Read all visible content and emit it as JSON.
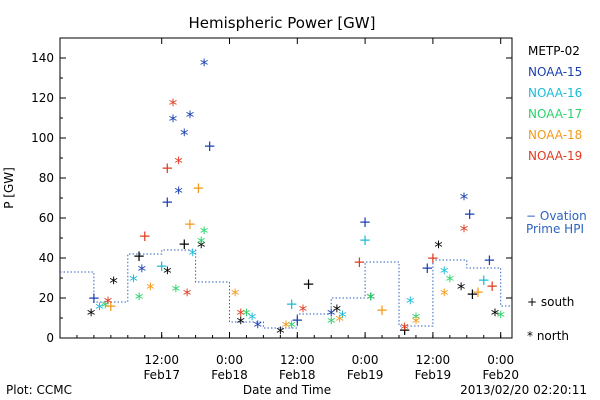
{
  "chart_data": {
    "type": "scatter",
    "title": "Hemispheric Power [GW]",
    "xlabel": "Date and Time",
    "ylabel": "P [GW]",
    "xlim": [
      "2013-02-16 18:00",
      "2013-02-20 02:00"
    ],
    "ylim": [
      0,
      150
    ],
    "grid": false,
    "legend_position": "right",
    "yticks": [
      0,
      20,
      40,
      60,
      80,
      100,
      120,
      140
    ],
    "xticks": [
      {
        "time": "2013-02-17 12:00",
        "label": "12:00",
        "sublabel": "Feb17"
      },
      {
        "time": "2013-02-18 00:00",
        "label": "0:00",
        "sublabel": "Feb18"
      },
      {
        "time": "2013-02-18 12:00",
        "label": "12:00",
        "sublabel": "Feb18"
      },
      {
        "time": "2013-02-19 00:00",
        "label": "0:00",
        "sublabel": "Feb19"
      },
      {
        "time": "2013-02-19 12:00",
        "label": "12:00",
        "sublabel": "Feb19"
      },
      {
        "time": "2013-02-20 00:00",
        "label": "0:00",
        "sublabel": "Feb20"
      }
    ],
    "series": [
      {
        "name": "METP-02",
        "color": "#000000",
        "points": [
          [
            "2013-02-16 23:30",
            12,
            "*"
          ],
          [
            "2013-02-17 03:30",
            28,
            "*"
          ],
          [
            "2013-02-17 08:00",
            41,
            "+"
          ],
          [
            "2013-02-17 13:00",
            33,
            "*"
          ],
          [
            "2013-02-17 16:00",
            47,
            "+"
          ],
          [
            "2013-02-17 19:00",
            46,
            "*"
          ],
          [
            "2013-02-18 02:00",
            8,
            "*"
          ],
          [
            "2013-02-18 09:00",
            3,
            "*"
          ],
          [
            "2013-02-18 14:00",
            27,
            "+"
          ],
          [
            "2013-02-18 19:00",
            14,
            "*"
          ],
          [
            "2013-02-19 01:00",
            20,
            "*"
          ],
          [
            "2013-02-19 07:00",
            4,
            "+"
          ],
          [
            "2013-02-19 13:00",
            46,
            "*"
          ],
          [
            "2013-02-19 17:00",
            25,
            "*"
          ],
          [
            "2013-02-19 19:00",
            22,
            "+"
          ],
          [
            "2013-02-19 23:00",
            12,
            "*"
          ]
        ]
      },
      {
        "name": "NOAA-15",
        "color": "#1a3fb0",
        "points": [
          [
            "2013-02-17 00:00",
            20,
            "+"
          ],
          [
            "2013-02-17 08:30",
            34,
            "*"
          ],
          [
            "2013-02-17 13:00",
            68,
            "+"
          ],
          [
            "2013-02-17 14:00",
            109,
            "*"
          ],
          [
            "2013-02-17 15:00",
            73,
            "*"
          ],
          [
            "2013-02-17 16:00",
            102,
            "*"
          ],
          [
            "2013-02-17 17:00",
            111,
            "*"
          ],
          [
            "2013-02-17 19:30",
            137,
            "*"
          ],
          [
            "2013-02-17 20:30",
            96,
            "+"
          ],
          [
            "2013-02-18 05:00",
            6,
            "*"
          ],
          [
            "2013-02-18 12:00",
            9,
            "+"
          ],
          [
            "2013-02-18 18:00",
            12,
            "*"
          ],
          [
            "2013-02-19 00:00",
            58,
            "+"
          ],
          [
            "2013-02-19 11:00",
            35,
            "+"
          ],
          [
            "2013-02-19 17:30",
            70,
            "*"
          ],
          [
            "2013-02-19 18:30",
            62,
            "+"
          ],
          [
            "2013-02-19 22:00",
            39,
            "+"
          ]
        ]
      },
      {
        "name": "NOAA-16",
        "color": "#1cbcd8",
        "points": [
          [
            "2013-02-17 01:00",
            15,
            "*"
          ],
          [
            "2013-02-17 07:00",
            29,
            "*"
          ],
          [
            "2013-02-17 12:00",
            36,
            "+"
          ],
          [
            "2013-02-17 17:30",
            42,
            "*"
          ],
          [
            "2013-02-18 04:00",
            10,
            "*"
          ],
          [
            "2013-02-18 11:00",
            17,
            "+"
          ],
          [
            "2013-02-18 20:00",
            11,
            "*"
          ],
          [
            "2013-02-19 00:00",
            49,
            "+"
          ],
          [
            "2013-02-19 08:00",
            18,
            "*"
          ],
          [
            "2013-02-19 14:00",
            33,
            "*"
          ],
          [
            "2013-02-19 21:00",
            29,
            "+"
          ]
        ]
      },
      {
        "name": "NOAA-17",
        "color": "#2ad36a",
        "points": [
          [
            "2013-02-17 02:00",
            16,
            "*"
          ],
          [
            "2013-02-17 08:00",
            20,
            "*"
          ],
          [
            "2013-02-17 14:30",
            24,
            "*"
          ],
          [
            "2013-02-17 19:30",
            53,
            "*"
          ],
          [
            "2013-02-17 19:00",
            48,
            "*"
          ],
          [
            "2013-02-18 03:00",
            12,
            "*"
          ],
          [
            "2013-02-18 11:00",
            6,
            "*"
          ],
          [
            "2013-02-18 18:00",
            8,
            "*"
          ],
          [
            "2013-02-19 01:00",
            20,
            "*"
          ],
          [
            "2013-02-19 09:00",
            10,
            "*"
          ],
          [
            "2013-02-19 15:00",
            29,
            "*"
          ],
          [
            "2013-02-20 00:00",
            11,
            "*"
          ]
        ]
      },
      {
        "name": "NOAA-18",
        "color": "#f39a1a",
        "points": [
          [
            "2013-02-17 03:00",
            16,
            "+"
          ],
          [
            "2013-02-17 10:00",
            25,
            "*"
          ],
          [
            "2013-02-17 17:00",
            57,
            "+"
          ],
          [
            "2013-02-17 18:30",
            75,
            "+"
          ],
          [
            "2013-02-18 01:00",
            22,
            "*"
          ],
          [
            "2013-02-18 10:00",
            6,
            "*"
          ],
          [
            "2013-02-18 19:30",
            9,
            "*"
          ],
          [
            "2013-02-19 03:00",
            14,
            "+"
          ],
          [
            "2013-02-19 09:00",
            8,
            "*"
          ],
          [
            "2013-02-19 14:00",
            22,
            "*"
          ],
          [
            "2013-02-19 20:00",
            23,
            "+"
          ]
        ]
      },
      {
        "name": "NOAA-19",
        "color": "#e03c1f",
        "points": [
          [
            "2013-02-17 02:30",
            18,
            "*"
          ],
          [
            "2013-02-17 09:00",
            51,
            "+"
          ],
          [
            "2013-02-17 13:00",
            85,
            "+"
          ],
          [
            "2013-02-17 14:00",
            117,
            "*"
          ],
          [
            "2013-02-17 15:00",
            88,
            "*"
          ],
          [
            "2013-02-17 16:30",
            22,
            "*"
          ],
          [
            "2013-02-18 02:00",
            12,
            "*"
          ],
          [
            "2013-02-18 13:00",
            14,
            "*"
          ],
          [
            "2013-02-18 23:00",
            38,
            "+"
          ],
          [
            "2013-02-19 07:00",
            5,
            "*"
          ],
          [
            "2013-02-19 12:00",
            40,
            "+"
          ],
          [
            "2013-02-19 17:30",
            54,
            "*"
          ],
          [
            "2013-02-19 22:30",
            26,
            "+"
          ]
        ]
      },
      {
        "name": "− Ovation Prime HPI",
        "color": "#2e63c0",
        "dotted": true,
        "points": [
          [
            "2013-02-16 18:00",
            33
          ],
          [
            "2013-02-17 00:00",
            18
          ],
          [
            "2013-02-17 06:00",
            42
          ],
          [
            "2013-02-17 12:00",
            44
          ],
          [
            "2013-02-17 18:00",
            28
          ],
          [
            "2013-02-18 00:00",
            8
          ],
          [
            "2013-02-18 06:00",
            5
          ],
          [
            "2013-02-18 12:00",
            12
          ],
          [
            "2013-02-18 18:00",
            20
          ],
          [
            "2013-02-19 00:00",
            38
          ],
          [
            "2013-02-19 06:00",
            6
          ],
          [
            "2013-02-19 12:00",
            39
          ],
          [
            "2013-02-19 18:00",
            35
          ],
          [
            "2013-02-20 00:00",
            16
          ]
        ]
      }
    ],
    "legend_symbols": [
      {
        "symbol": "+",
        "label": "south"
      },
      {
        "symbol": "*",
        "label": "north"
      }
    ]
  },
  "footer": {
    "left": "Plot: CCMC",
    "center": "Date and Time",
    "right": "2013/02/20 02:20:11"
  }
}
